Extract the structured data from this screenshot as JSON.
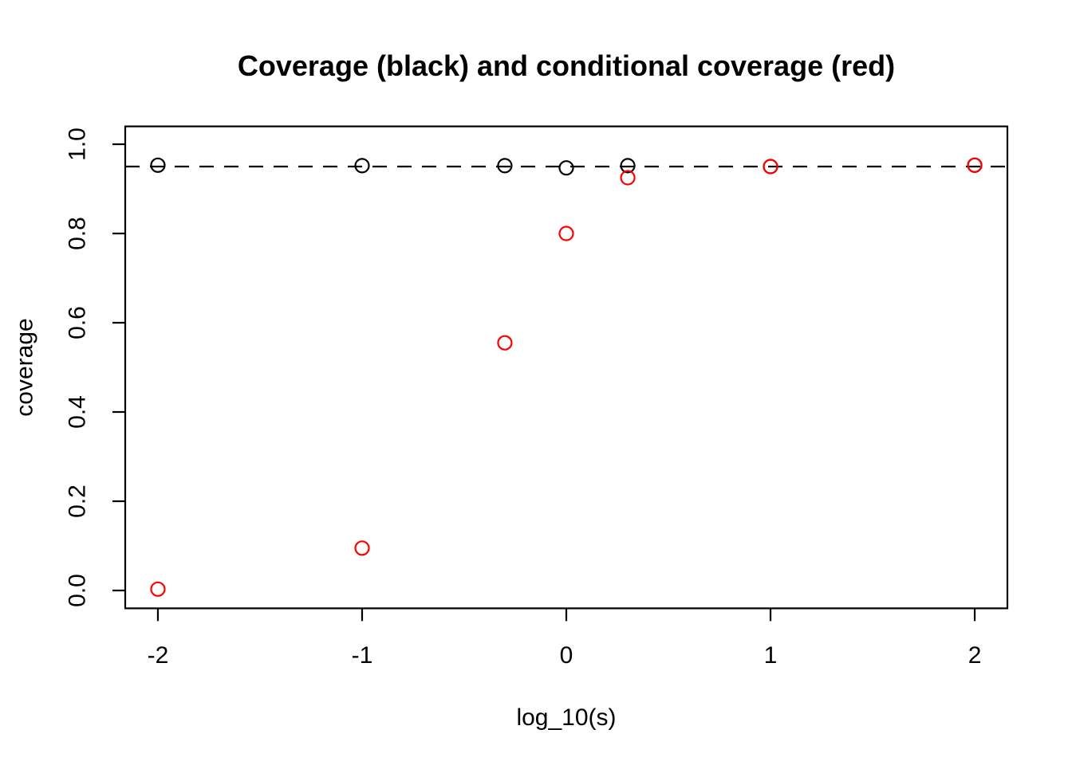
{
  "chart_data": {
    "type": "scatter",
    "title": "Coverage (black) and conditional coverage (red)",
    "xlabel": "log_10(s)",
    "ylabel": "coverage",
    "xlim": [
      -2.16,
      2.16
    ],
    "ylim": [
      -0.04,
      1.04
    ],
    "x_ticks": [
      -2,
      -1,
      0,
      1,
      2
    ],
    "x_tick_labels": [
      "-2",
      "-1",
      "0",
      "1",
      "2"
    ],
    "y_ticks": [
      0.0,
      0.2,
      0.4,
      0.6,
      0.8,
      1.0
    ],
    "y_tick_labels": [
      "0.0",
      "0.2",
      "0.4",
      "0.6",
      "0.8",
      "1.0"
    ],
    "grid": false,
    "legend_position": "none",
    "reference_line": {
      "y": 0.95,
      "style": "dashed",
      "color": "#000000"
    },
    "series": [
      {
        "name": "coverage",
        "color": "#000000",
        "marker": "open-circle",
        "x": [
          -2,
          -1,
          -0.301,
          0,
          0.301,
          1,
          2
        ],
        "y": [
          0.953,
          0.952,
          0.952,
          0.947,
          0.952,
          0.95,
          0.953
        ]
      },
      {
        "name": "conditional coverage",
        "color": "#FF0000",
        "marker": "open-circle",
        "x": [
          -2,
          -1,
          -0.301,
          0,
          0.301,
          1,
          2
        ],
        "y": [
          0.003,
          0.095,
          0.555,
          0.8,
          0.925,
          0.95,
          0.953
        ]
      }
    ]
  },
  "colors": {
    "background": "#FFFFFF",
    "foreground": "#000000",
    "accent_red": "#FF0000"
  }
}
